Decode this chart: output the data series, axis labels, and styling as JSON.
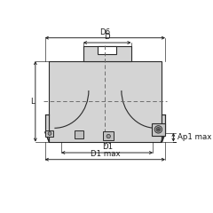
{
  "bg_color": "#ffffff",
  "body_fill": "#d4d4d4",
  "body_edge": "#2a2a2a",
  "dark_fill": "#b0b0b0",
  "insert_fill": "#c8c8c8",
  "insert_edge": "#1a1a1a",
  "dim_color": "#1a1a1a",
  "dash_color": "#666666",
  "fig_width": 2.4,
  "fig_height": 2.4,
  "dpi": 100,
  "labels": {
    "D6": "D6",
    "D": "D",
    "D1": "D1",
    "D1max": "D1 max",
    "L": "L",
    "Ap1max": "Ap1 max"
  }
}
